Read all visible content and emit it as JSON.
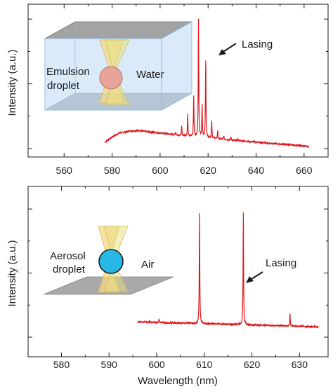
{
  "chart_data": [
    {
      "type": "line",
      "ylabel": "Intensity (a.u.)",
      "xlabel": "",
      "xlim": [
        545,
        670
      ],
      "ylim": [
        0,
        1.05
      ],
      "xticks": [
        560,
        580,
        600,
        620,
        640,
        660
      ],
      "xtick_labels": [
        "560",
        "580",
        "600",
        "620",
        "640",
        "660"
      ],
      "grid": false,
      "color": "#e0161b",
      "baseline": {
        "x": [
          577,
          580,
          583,
          587,
          591,
          595,
          600,
          605,
          610,
          615,
          620,
          625,
          630,
          635,
          640,
          645,
          650,
          655,
          660,
          662
        ],
        "y": [
          0.05,
          0.09,
          0.12,
          0.135,
          0.14,
          0.13,
          0.12,
          0.11,
          0.1,
          0.09,
          0.085,
          0.075,
          0.065,
          0.058,
          0.05,
          0.042,
          0.035,
          0.028,
          0.02,
          0.015
        ]
      },
      "peaks": [
        {
          "x": 606.5,
          "y": 0.13
        },
        {
          "x": 609.0,
          "y": 0.17
        },
        {
          "x": 611.5,
          "y": 0.27
        },
        {
          "x": 614.0,
          "y": 0.42
        },
        {
          "x": 616.0,
          "y": 1.0
        },
        {
          "x": 617.5,
          "y": 0.34
        },
        {
          "x": 619.0,
          "y": 0.7
        },
        {
          "x": 621.5,
          "y": 0.22
        },
        {
          "x": 624.0,
          "y": 0.14
        },
        {
          "x": 626.5,
          "y": 0.1
        },
        {
          "x": 629.5,
          "y": 0.09
        },
        {
          "x": 632.5,
          "y": 0.075
        }
      ],
      "annotation": "Lasing",
      "inset_labels": {
        "droplet": "Emulsion\ndroplet",
        "medium": "Water"
      }
    },
    {
      "type": "line",
      "ylabel": "Intensity (a.u.)",
      "xlabel": "Wavelength (nm)",
      "xlim": [
        573,
        636
      ],
      "ylim": [
        0,
        1.05
      ],
      "xticks": [
        580,
        590,
        600,
        610,
        620,
        630
      ],
      "xtick_labels": [
        "580",
        "590",
        "600",
        "610",
        "620",
        "630"
      ],
      "grid": false,
      "color": "#e0161b",
      "baseline": {
        "x": [
          596,
          600,
          605,
          610,
          615,
          620,
          625,
          630,
          634
        ],
        "y": [
          0.12,
          0.115,
          0.11,
          0.105,
          0.1,
          0.095,
          0.09,
          0.085,
          0.08
        ]
      },
      "peaks": [
        {
          "x": 600.5,
          "y": 0.14
        },
        {
          "x": 609.0,
          "y": 0.97
        },
        {
          "x": 618.2,
          "y": 0.99
        },
        {
          "x": 628.0,
          "y": 0.18
        }
      ],
      "annotation": "Lasing",
      "inset_labels": {
        "droplet": "Aerosol\ndroplet",
        "medium": "Air"
      }
    }
  ]
}
